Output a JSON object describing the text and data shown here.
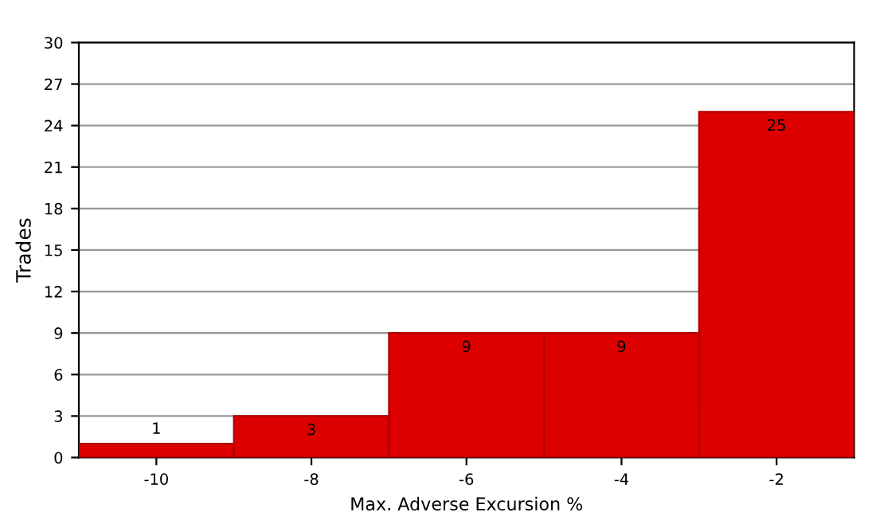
{
  "chart_data": {
    "type": "bar",
    "xlabel": "Max. Adverse Excursion %",
    "ylabel": "Trades",
    "categories": [
      "-10",
      "-8",
      "-6",
      "-4",
      "-2"
    ],
    "values": [
      1,
      3,
      9,
      9,
      25
    ],
    "color": "#dd0000",
    "ylim": [
      0,
      30
    ],
    "yticks": [
      0,
      3,
      6,
      9,
      12,
      15,
      18,
      21,
      24,
      27,
      30
    ],
    "grid": "y",
    "data_labels": true
  }
}
